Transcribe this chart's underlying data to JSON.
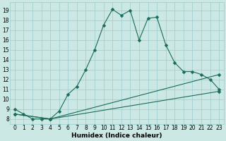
{
  "xlabel": "Humidex (Indice chaleur)",
  "bg_color": "#cce8e4",
  "line_color": "#1a6b5a",
  "grid_color": "#99cccc",
  "xlim": [
    -0.5,
    23.5
  ],
  "ylim": [
    7.5,
    19.8
  ],
  "xticks": [
    0,
    1,
    2,
    3,
    4,
    5,
    6,
    7,
    8,
    9,
    10,
    11,
    12,
    13,
    14,
    15,
    16,
    17,
    18,
    19,
    20,
    21,
    22,
    23
  ],
  "yticks": [
    8,
    9,
    10,
    11,
    12,
    13,
    14,
    15,
    16,
    17,
    18,
    19
  ],
  "line1_x": [
    0,
    1,
    2,
    3,
    4,
    5,
    6,
    7,
    8,
    9,
    10,
    11,
    12,
    13,
    14,
    15,
    16,
    17,
    18,
    19,
    20,
    21,
    22,
    23
  ],
  "line1_y": [
    9.0,
    8.5,
    8.0,
    8.0,
    8.0,
    8.8,
    10.5,
    11.3,
    13.0,
    15.0,
    17.5,
    19.1,
    18.5,
    19.0,
    16.0,
    18.2,
    18.3,
    15.5,
    13.7,
    12.8,
    12.8,
    12.5,
    12.0,
    11.0
  ],
  "line2_x": [
    0,
    4,
    23
  ],
  "line2_y": [
    8.5,
    8.0,
    12.5
  ],
  "line3_x": [
    0,
    4,
    23
  ],
  "line3_y": [
    8.5,
    8.0,
    10.8
  ],
  "markersize": 2.5,
  "linewidth": 0.8,
  "tick_fontsize": 5.5,
  "label_fontsize": 6.5
}
